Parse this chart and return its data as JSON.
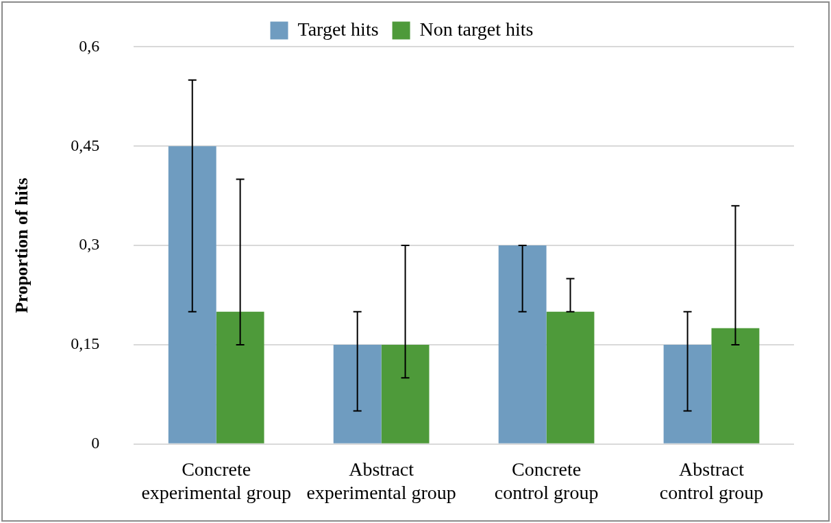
{
  "chart_data": {
    "type": "bar",
    "ylabel": "Proportion of hits",
    "categories": [
      "Concrete experimental group",
      "Abstract experimental group",
      "Concrete control group",
      "Abstract control group"
    ],
    "series": [
      {
        "name": "Target hits",
        "color": "#6f9cc0",
        "values": [
          0.45,
          0.15,
          0.3,
          0.15
        ],
        "errors": [
          [
            0.2,
            0.55
          ],
          [
            0.05,
            0.2
          ],
          [
            0.2,
            0.3
          ],
          [
            0.05,
            0.2
          ]
        ]
      },
      {
        "name": "Non target hits",
        "color": "#4e9a3a",
        "values": [
          0.2,
          0.15,
          0.2,
          0.175
        ],
        "errors": [
          [
            0.15,
            0.4
          ],
          [
            0.1,
            0.3
          ],
          [
            0.2,
            0.25
          ],
          [
            0.15,
            0.36
          ]
        ]
      }
    ],
    "ylim": [
      0,
      0.6
    ],
    "yticks": [
      0,
      {
        "value": 0.15,
        "label": "0,15"
      },
      {
        "value": 0.3,
        "label": "0,3"
      },
      {
        "value": 0.45,
        "label": "0,45"
      },
      {
        "value": 0.6,
        "label": "0,6"
      }
    ],
    "grid": "y",
    "legend": "top"
  }
}
